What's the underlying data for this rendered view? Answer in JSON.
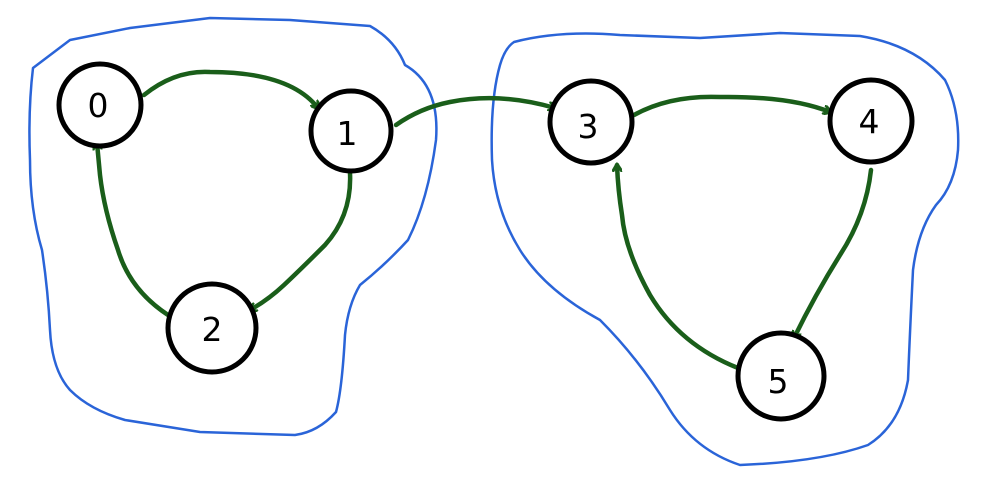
{
  "nodes": [
    {
      "id": "0",
      "label": "0"
    },
    {
      "id": "1",
      "label": "1"
    },
    {
      "id": "2",
      "label": "2"
    },
    {
      "id": "3",
      "label": "3"
    },
    {
      "id": "4",
      "label": "4"
    },
    {
      "id": "5",
      "label": "5"
    }
  ],
  "edges": [
    {
      "from": "0",
      "to": "1"
    },
    {
      "from": "1",
      "to": "2"
    },
    {
      "from": "2",
      "to": "0"
    },
    {
      "from": "1",
      "to": "3"
    },
    {
      "from": "3",
      "to": "4"
    },
    {
      "from": "4",
      "to": "5"
    },
    {
      "from": "5",
      "to": "3"
    }
  ],
  "groups": [
    {
      "id": "left-component",
      "members": [
        "0",
        "1",
        "2"
      ]
    },
    {
      "id": "right-component",
      "members": [
        "3",
        "4",
        "5"
      ]
    }
  ],
  "colors": {
    "node_stroke": "#000000",
    "node_fill": "#ffffff",
    "edge": "#1a5e1a",
    "group_outline": "#2a64d8",
    "background": "#ffffff"
  }
}
